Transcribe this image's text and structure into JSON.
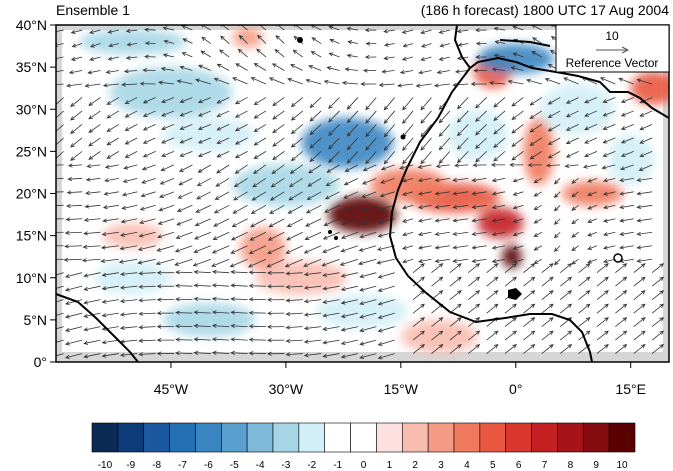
{
  "title_left": "Ensemble 1",
  "title_right": "(186 h forecast) 1800 UTC 17 Aug 2004",
  "y_ticks": [
    "0°",
    "5°N",
    "10°N",
    "15°N",
    "20°N",
    "25°N",
    "30°N",
    "35°N",
    "40°N"
  ],
  "x_ticks": [
    "45°W",
    "30°W",
    "15°W",
    "0°",
    "15°E"
  ],
  "y_tick_values": [
    0,
    5,
    10,
    15,
    20,
    25,
    30,
    35,
    40
  ],
  "x_tick_values": [
    -45,
    -30,
    -15,
    0,
    15
  ],
  "map_extent": {
    "lon": [
      -60,
      20
    ],
    "lat": [
      0,
      40
    ]
  },
  "reference_vector": {
    "magnitude": "10",
    "label": "Reference Vector"
  },
  "colorbar": {
    "labels": [
      "-10",
      "-9",
      "-8",
      "-7",
      "-6",
      "-5",
      "-4",
      "-3",
      "-2",
      "-1",
      "0",
      "1",
      "2",
      "3",
      "4",
      "5",
      "6",
      "7",
      "8",
      "9",
      "10"
    ],
    "colors": [
      "#0b2a55",
      "#0d3a78",
      "#1b58a0",
      "#2470b4",
      "#3a86c2",
      "#5aa0cf",
      "#7fbadb",
      "#a6d6e6",
      "#d2eef6",
      "#ffffff",
      "#ffffff",
      "#fde0e0",
      "#f9bcb0",
      "#f49a84",
      "#ef7a5e",
      "#e85840",
      "#d9362d",
      "#c41f23",
      "#a61318",
      "#840b10",
      "#5a0000"
    ]
  },
  "colors": {
    "land_mask": "#d6d6d6",
    "coastline": "#000000",
    "vector": "#333333"
  },
  "anomaly_features": [
    {
      "lon": -20,
      "lat": 17.5,
      "value": 10,
      "rx": 4.5,
      "ry": 2.2
    },
    {
      "lon": -0.5,
      "lat": 12.5,
      "value": 10,
      "rx": 1.3,
      "ry": 1.4
    },
    {
      "lon": -2,
      "lat": 16.5,
      "value": 7,
      "rx": 3,
      "ry": 1.8
    },
    {
      "lon": -8,
      "lat": 19.5,
      "value": 5,
      "rx": 6,
      "ry": 1.8
    },
    {
      "lon": -14,
      "lat": 21,
      "value": 4,
      "rx": 5,
      "ry": 2
    },
    {
      "lon": 3,
      "lat": 25,
      "value": 4,
      "rx": 2,
      "ry": 4
    },
    {
      "lon": 10,
      "lat": 20,
      "value": 4,
      "rx": 4,
      "ry": 1.5
    },
    {
      "lon": -3,
      "lat": 34.5,
      "value": 5,
      "rx": 2.5,
      "ry": 2
    },
    {
      "lon": 18,
      "lat": 32.5,
      "value": 5,
      "rx": 3,
      "ry": 2
    },
    {
      "lon": -33,
      "lat": 13.5,
      "value": 3,
      "rx": 3,
      "ry": 2.5
    },
    {
      "lon": -50,
      "lat": 15,
      "value": 2,
      "rx": 4,
      "ry": 1.5
    },
    {
      "lon": -28,
      "lat": 10,
      "value": 2,
      "rx": 6,
      "ry": 2
    },
    {
      "lon": -10,
      "lat": 3,
      "value": 2,
      "rx": 5,
      "ry": 2
    },
    {
      "lon": -35,
      "lat": 38.5,
      "value": 3,
      "rx": 2,
      "ry": 1.2
    },
    {
      "lon": -22,
      "lat": 26,
      "value": -6,
      "rx": 6,
      "ry": 3
    },
    {
      "lon": 0,
      "lat": 36,
      "value": -6,
      "rx": 5,
      "ry": 1.8
    },
    {
      "lon": -30,
      "lat": 21,
      "value": -3,
      "rx": 7,
      "ry": 2.5
    },
    {
      "lon": -45,
      "lat": 32,
      "value": -3,
      "rx": 8,
      "ry": 3
    },
    {
      "lon": -50,
      "lat": 38,
      "value": -3,
      "rx": 7,
      "ry": 1.5
    },
    {
      "lon": -40,
      "lat": 27,
      "value": -2,
      "rx": 6,
      "ry": 2
    },
    {
      "lon": -20,
      "lat": 6,
      "value": -2,
      "rx": 6,
      "ry": 2
    },
    {
      "lon": -40,
      "lat": 5,
      "value": -3,
      "rx": 6,
      "ry": 2
    },
    {
      "lon": -50,
      "lat": 10,
      "value": -2,
      "rx": 5,
      "ry": 2
    },
    {
      "lon": 8,
      "lat": 30,
      "value": -2,
      "rx": 5,
      "ry": 3
    },
    {
      "lon": -5,
      "lat": 27,
      "value": -2,
      "rx": 4,
      "ry": 3
    },
    {
      "lon": 15,
      "lat": 24,
      "value": -2,
      "rx": 3,
      "ry": 3
    }
  ]
}
